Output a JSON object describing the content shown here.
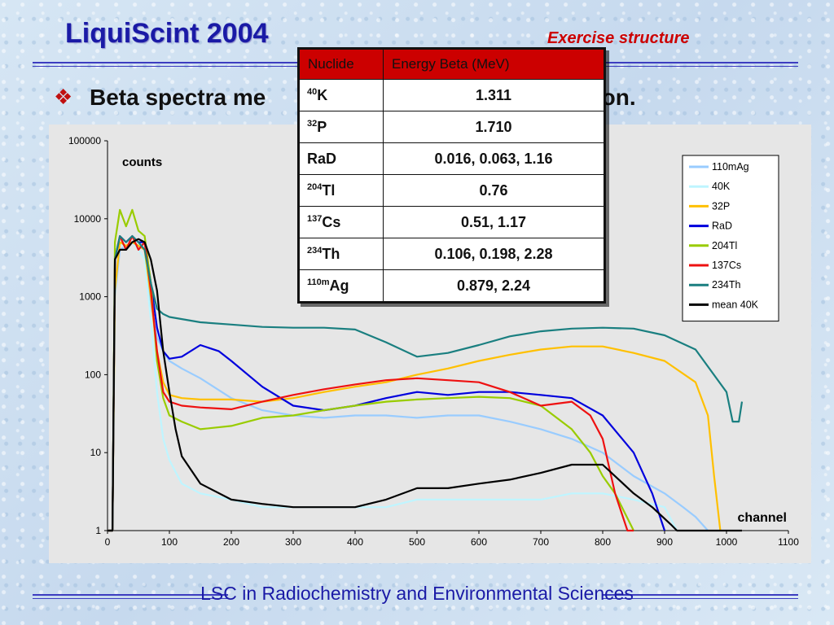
{
  "header": {
    "title": "LiquiScint 2004",
    "subtitle": "Exercise structure"
  },
  "bullet": {
    "text_visible_left": "Beta spectra me",
    "text_visible_right": "ation."
  },
  "table": {
    "headers": [
      "Nuclide",
      "Energy Beta (MeV)"
    ],
    "rows": [
      {
        "mass": "40",
        "symbol": "K",
        "energy": "1.311"
      },
      {
        "mass": "32",
        "symbol": "P",
        "energy": "1.710"
      },
      {
        "mass": "",
        "symbol": "RaD",
        "energy": "0.016, 0.063, 1.16"
      },
      {
        "mass": "204",
        "symbol": "Tl",
        "energy": "0.76"
      },
      {
        "mass": "137",
        "symbol": "Cs",
        "energy": "0.51, 1.17"
      },
      {
        "mass": "234",
        "symbol": "Th",
        "energy": "0.106, 0.198, 2.28"
      },
      {
        "mass": "110m",
        "symbol": "Ag",
        "energy": "0.879, 2.24"
      }
    ]
  },
  "footer": {
    "text": "LSC in Radiochemistry and Environmental Sciences"
  },
  "chart_data": {
    "type": "line",
    "ylabel": "counts",
    "xlabel": "channel",
    "yscale": "log",
    "xlim": [
      0,
      1100
    ],
    "ylim": [
      1,
      100000
    ],
    "x_ticks": [
      0,
      100,
      200,
      300,
      400,
      500,
      600,
      700,
      800,
      900,
      1000,
      1100
    ],
    "y_ticks": [
      1,
      10,
      100,
      1000,
      10000,
      100000
    ],
    "y_tick_labels": [
      "1",
      "10",
      "100",
      "1000",
      "10000",
      "100000"
    ],
    "grid": false,
    "legend_position": "top-right",
    "series": [
      {
        "name": "110mAg",
        "color": "#99ccff",
        "x": [
          0,
          8,
          12,
          20,
          30,
          40,
          50,
          60,
          70,
          80,
          90,
          100,
          120,
          150,
          200,
          250,
          300,
          350,
          400,
          450,
          500,
          550,
          600,
          650,
          700,
          750,
          800,
          850,
          900,
          930,
          950,
          970
        ],
        "y": [
          1,
          1,
          1000,
          4000,
          4500,
          5000,
          4500,
          4000,
          800,
          300,
          200,
          150,
          120,
          90,
          50,
          35,
          30,
          28,
          30,
          30,
          28,
          30,
          30,
          25,
          20,
          15,
          10,
          5,
          3,
          2,
          1.5,
          1
        ]
      },
      {
        "name": "40K",
        "color": "#bff5ff",
        "x": [
          0,
          8,
          12,
          20,
          30,
          40,
          50,
          60,
          70,
          80,
          90,
          100,
          120,
          150,
          200,
          250,
          300,
          350,
          400,
          450,
          500,
          550,
          600,
          650,
          700,
          750,
          800,
          850,
          900,
          920
        ],
        "y": [
          1,
          1,
          4000,
          5000,
          4000,
          5000,
          4000,
          3000,
          500,
          60,
          15,
          8,
          4,
          3,
          2.5,
          2,
          2,
          2,
          2,
          2,
          2.5,
          2.5,
          2.5,
          2.5,
          2.5,
          3,
          3,
          2.5,
          2,
          1
        ]
      },
      {
        "name": "32P",
        "color": "#ffc000",
        "x": [
          0,
          8,
          12,
          20,
          30,
          40,
          50,
          60,
          70,
          80,
          90,
          100,
          120,
          150,
          200,
          250,
          300,
          350,
          400,
          450,
          500,
          550,
          600,
          650,
          700,
          750,
          800,
          850,
          900,
          950,
          970,
          980,
          990
        ],
        "y": [
          1,
          1,
          1200,
          5000,
          4500,
          5000,
          4500,
          4000,
          1000,
          200,
          80,
          55,
          50,
          48,
          48,
          45,
          50,
          60,
          70,
          80,
          100,
          120,
          150,
          180,
          210,
          230,
          230,
          190,
          150,
          80,
          30,
          5,
          1
        ]
      },
      {
        "name": "RaD",
        "color": "#0000dd",
        "x": [
          0,
          8,
          12,
          20,
          30,
          40,
          50,
          60,
          70,
          80,
          90,
          100,
          120,
          150,
          180,
          200,
          250,
          300,
          350,
          400,
          450,
          500,
          550,
          600,
          650,
          700,
          750,
          800,
          850,
          880,
          900
        ],
        "y": [
          1,
          1,
          3000,
          6000,
          5000,
          6000,
          5000,
          5000,
          1500,
          400,
          200,
          160,
          170,
          240,
          200,
          150,
          70,
          40,
          35,
          40,
          50,
          60,
          55,
          60,
          60,
          55,
          50,
          30,
          10,
          3,
          1
        ]
      },
      {
        "name": "204Tl",
        "color": "#99cc00",
        "x": [
          0,
          8,
          12,
          20,
          30,
          40,
          50,
          60,
          70,
          80,
          90,
          100,
          120,
          150,
          200,
          250,
          300,
          350,
          400,
          450,
          500,
          550,
          600,
          650,
          700,
          750,
          780,
          800,
          820,
          850
        ],
        "y": [
          1,
          1,
          5000,
          13000,
          8000,
          13000,
          7000,
          6000,
          1500,
          150,
          50,
          30,
          25,
          20,
          22,
          28,
          30,
          35,
          40,
          45,
          48,
          50,
          52,
          50,
          40,
          20,
          10,
          5,
          3,
          1
        ]
      },
      {
        "name": "137Cs",
        "color": "#ee1111",
        "x": [
          0,
          8,
          12,
          20,
          30,
          40,
          50,
          60,
          70,
          80,
          90,
          100,
          120,
          150,
          200,
          250,
          300,
          350,
          400,
          450,
          500,
          550,
          600,
          650,
          700,
          750,
          780,
          800,
          820,
          840,
          850
        ],
        "y": [
          1,
          1,
          3000,
          6000,
          4000,
          6000,
          4000,
          5000,
          1200,
          200,
          60,
          45,
          40,
          38,
          36,
          45,
          55,
          65,
          75,
          85,
          90,
          85,
          80,
          60,
          40,
          45,
          30,
          15,
          3,
          1,
          1
        ]
      },
      {
        "name": "234Th",
        "color": "#1a7f80",
        "x": [
          0,
          8,
          12,
          20,
          30,
          40,
          50,
          60,
          70,
          80,
          90,
          100,
          150,
          200,
          250,
          300,
          350,
          400,
          450,
          500,
          550,
          600,
          650,
          700,
          750,
          800,
          850,
          900,
          950,
          1000,
          1010,
          1020,
          1025
        ],
        "y": [
          1,
          1,
          3000,
          6000,
          5000,
          6000,
          5000,
          4000,
          1500,
          700,
          600,
          550,
          470,
          440,
          410,
          400,
          400,
          380,
          260,
          170,
          190,
          240,
          310,
          360,
          390,
          400,
          390,
          320,
          210,
          60,
          25,
          25,
          45
        ]
      },
      {
        "name": "mean 40K",
        "color": "#000000",
        "x": [
          0,
          8,
          12,
          20,
          30,
          40,
          50,
          60,
          70,
          80,
          90,
          100,
          110,
          120,
          150,
          200,
          250,
          300,
          350,
          400,
          450,
          500,
          550,
          600,
          650,
          700,
          750,
          800,
          850,
          880,
          910,
          920,
          1000,
          1025
        ],
        "y": [
          1,
          1,
          3000,
          4000,
          4000,
          5000,
          5500,
          5000,
          3000,
          1200,
          200,
          60,
          20,
          9,
          4,
          2.5,
          2.2,
          2,
          2,
          2,
          2.5,
          3.5,
          3.5,
          4,
          4.5,
          5.5,
          7,
          7,
          3,
          2,
          1.2,
          1,
          1,
          1
        ]
      }
    ]
  }
}
